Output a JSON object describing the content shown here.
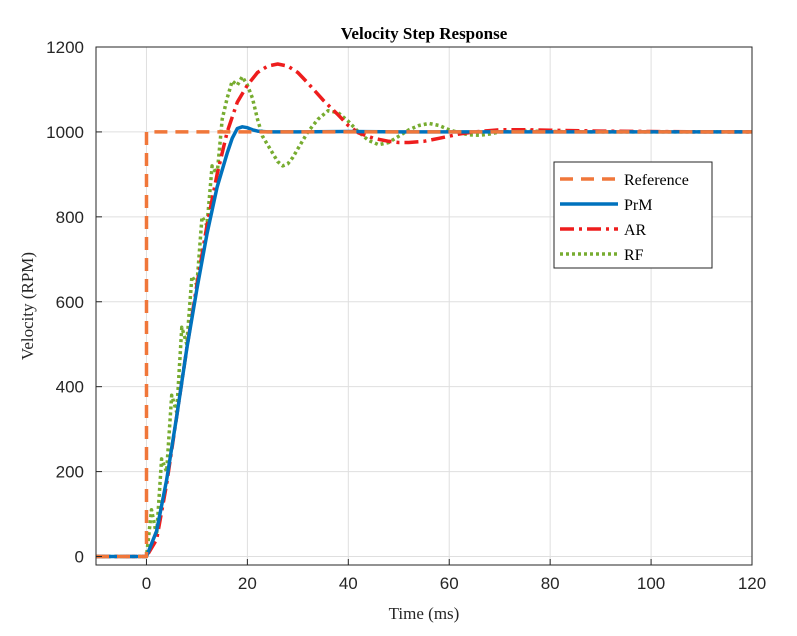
{
  "chart_data": {
    "type": "line",
    "title": "Velocity Step Response",
    "xlabel": "Time (ms)",
    "ylabel": "Velocity (RPM)",
    "xlim": [
      -10,
      120
    ],
    "ylim": [
      -20,
      1200
    ],
    "xticks": [
      0,
      20,
      40,
      60,
      80,
      100,
      120
    ],
    "yticks": [
      0,
      200,
      400,
      600,
      800,
      1000,
      1200
    ],
    "grid": true,
    "legend_position": "right",
    "series": [
      {
        "name": "Reference",
        "color": "#F0773A",
        "style": "dashed",
        "x": [
          -10,
          0,
          0,
          120
        ],
        "y": [
          0,
          0,
          1000,
          1000
        ]
      },
      {
        "name": "PrM",
        "color": "#0072BD",
        "style": "solid",
        "x": [
          -10,
          0,
          2,
          4,
          6,
          8,
          10,
          12,
          14,
          16,
          17,
          18,
          19,
          20,
          21,
          22,
          24,
          30,
          40,
          50,
          60,
          70,
          80,
          90,
          100,
          110,
          120
        ],
        "y": [
          0,
          0,
          60,
          180,
          330,
          490,
          630,
          760,
          870,
          950,
          985,
          1008,
          1012,
          1010,
          1005,
          1002,
          1000,
          1000,
          1001,
          1000,
          1000,
          1000,
          1000,
          1000,
          1000,
          1000,
          1000
        ]
      },
      {
        "name": "AR",
        "color": "#EE1D1D",
        "style": "dashdot",
        "x": [
          -10,
          0,
          2,
          4,
          6,
          8,
          10,
          12,
          14,
          16,
          18,
          20,
          22,
          24,
          26,
          28,
          30,
          32,
          35,
          38,
          40,
          42,
          45,
          48,
          50,
          52,
          55,
          58,
          60,
          62,
          65,
          68,
          70,
          72,
          75,
          80,
          90,
          100,
          110,
          120
        ],
        "y": [
          0,
          0,
          40,
          170,
          330,
          490,
          640,
          780,
          900,
          1000,
          1070,
          1110,
          1140,
          1155,
          1160,
          1155,
          1140,
          1115,
          1075,
          1040,
          1015,
          998,
          985,
          978,
          975,
          975,
          978,
          985,
          990,
          995,
          1000,
          1003,
          1005,
          1005,
          1005,
          1004,
          1002,
          1001,
          1000,
          1000
        ]
      },
      {
        "name": "RF",
        "color": "#77AC30",
        "style": "dotted",
        "x": [
          -10,
          0,
          1,
          2,
          3,
          4,
          5,
          6,
          7,
          8,
          9,
          10,
          11,
          12,
          13,
          14,
          15,
          16,
          17,
          18,
          19,
          20,
          21,
          22,
          23,
          24,
          25,
          26,
          27,
          28,
          29,
          30,
          32,
          34,
          36,
          38,
          40,
          42,
          44,
          46,
          48,
          50,
          52,
          54,
          56,
          58,
          60,
          62,
          64,
          66,
          68,
          70,
          75,
          80,
          90,
          100,
          110,
          120
        ],
        "y": [
          0,
          0,
          110,
          50,
          230,
          200,
          380,
          340,
          540,
          500,
          660,
          640,
          800,
          780,
          920,
          900,
          1030,
          1080,
          1120,
          1110,
          1130,
          1110,
          1080,
          1030,
          990,
          970,
          950,
          930,
          920,
          925,
          940,
          960,
          1000,
          1030,
          1050,
          1045,
          1025,
          1000,
          980,
          970,
          975,
          990,
          1005,
          1015,
          1020,
          1015,
          1005,
          998,
          993,
          992,
          995,
          1000,
          1002,
          1001,
          1000,
          1000,
          1000,
          1000
        ]
      }
    ]
  }
}
